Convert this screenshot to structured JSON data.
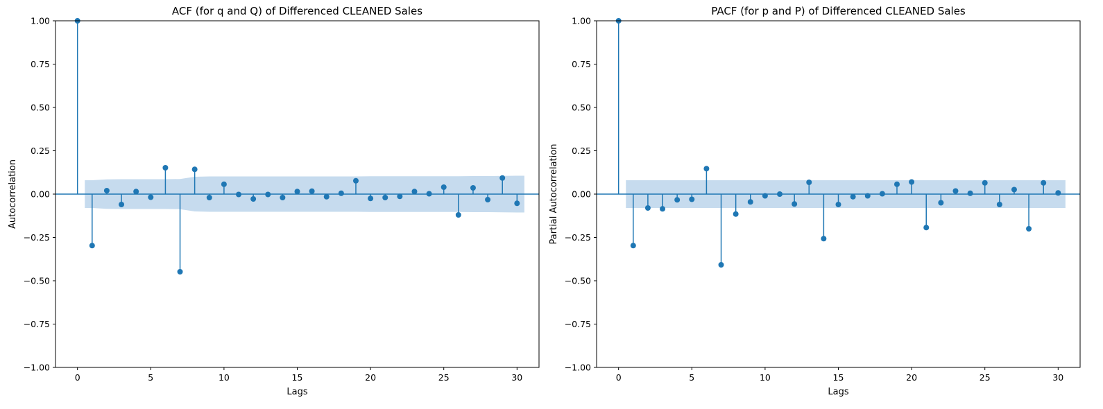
{
  "chart_data": [
    {
      "type": "stem",
      "title": "ACF (for q and Q) of Differenced CLEANED Sales",
      "xlabel": "Lags",
      "ylabel": "Autocorrelation",
      "xlim": [
        -1.5,
        31.5
      ],
      "ylim": [
        -1.0,
        1.0
      ],
      "xticks": [
        0,
        5,
        10,
        15,
        20,
        25,
        30
      ],
      "yticks": [
        -1.0,
        -0.75,
        -0.5,
        -0.25,
        0.0,
        0.25,
        0.5,
        0.75,
        1.0
      ],
      "ytick_labels": [
        "−1.00",
        "−0.75",
        "−0.50",
        "−0.25",
        "0.00",
        "0.25",
        "0.50",
        "0.75",
        "1.00"
      ],
      "xtick_labels": [
        "0",
        "5",
        "10",
        "15",
        "20",
        "25",
        "30"
      ],
      "lags": [
        0,
        1,
        2,
        3,
        4,
        5,
        6,
        7,
        8,
        9,
        10,
        11,
        12,
        13,
        14,
        15,
        16,
        17,
        18,
        19,
        20,
        21,
        22,
        23,
        24,
        25,
        26,
        27,
        28,
        29,
        30
      ],
      "values": [
        1.0,
        -0.297,
        0.02,
        -0.06,
        0.015,
        -0.018,
        0.152,
        -0.448,
        0.143,
        -0.02,
        0.057,
        -0.002,
        -0.028,
        -0.002,
        -0.02,
        0.015,
        0.017,
        -0.015,
        0.005,
        0.077,
        -0.025,
        -0.02,
        -0.013,
        0.015,
        0.002,
        0.04,
        -0.12,
        0.036,
        -0.032,
        0.093,
        -0.053
      ],
      "conf_band": {
        "x": [
          0.5,
          1,
          2,
          3,
          4,
          5,
          6,
          7,
          8,
          9,
          10,
          11,
          12,
          13,
          14,
          15,
          16,
          17,
          18,
          19,
          20,
          21,
          22,
          23,
          24,
          25,
          26,
          27,
          28,
          29,
          30,
          30.5
        ],
        "upper": [
          0.08,
          0.08,
          0.085,
          0.086,
          0.086,
          0.086,
          0.086,
          0.087,
          0.1,
          0.102,
          0.102,
          0.102,
          0.102,
          0.102,
          0.102,
          0.102,
          0.102,
          0.102,
          0.102,
          0.102,
          0.103,
          0.103,
          0.103,
          0.103,
          0.103,
          0.103,
          0.103,
          0.104,
          0.104,
          0.105,
          0.106,
          0.106
        ]
      },
      "color": "#1f77b4",
      "band_color": "#c6dbee",
      "grid": false
    },
    {
      "type": "stem",
      "title": "PACF (for p and P) of Differenced CLEANED Sales",
      "xlabel": "Lags",
      "ylabel": "Partial Autocorrelation",
      "xlim": [
        -1.5,
        31.5
      ],
      "ylim": [
        -1.0,
        1.0
      ],
      "xticks": [
        0,
        5,
        10,
        15,
        20,
        25,
        30
      ],
      "yticks": [
        -1.0,
        -0.75,
        -0.5,
        -0.25,
        0.0,
        0.25,
        0.5,
        0.75,
        1.0
      ],
      "ytick_labels": [
        "−1.00",
        "−0.75",
        "−0.50",
        "−0.25",
        "0.00",
        "0.25",
        "0.50",
        "0.75",
        "1.00"
      ],
      "xtick_labels": [
        "0",
        "5",
        "10",
        "15",
        "20",
        "25",
        "30"
      ],
      "lags": [
        0,
        1,
        2,
        3,
        4,
        5,
        6,
        7,
        8,
        9,
        10,
        11,
        12,
        13,
        14,
        15,
        16,
        17,
        18,
        19,
        20,
        21,
        22,
        23,
        24,
        25,
        26,
        27,
        28,
        29,
        30
      ],
      "values": [
        1.0,
        -0.297,
        -0.08,
        -0.085,
        -0.033,
        -0.03,
        0.147,
        -0.408,
        -0.115,
        -0.045,
        -0.01,
        0.0,
        -0.057,
        0.068,
        -0.257,
        -0.06,
        -0.015,
        -0.01,
        0.002,
        0.057,
        0.07,
        -0.193,
        -0.05,
        0.018,
        0.005,
        0.065,
        -0.06,
        0.026,
        -0.2,
        0.065,
        0.007
      ],
      "conf_band": {
        "x": [
          0.5,
          30.5
        ],
        "upper": [
          0.08,
          0.08
        ]
      },
      "color": "#1f77b4",
      "band_color": "#c6dbee",
      "grid": false
    }
  ]
}
